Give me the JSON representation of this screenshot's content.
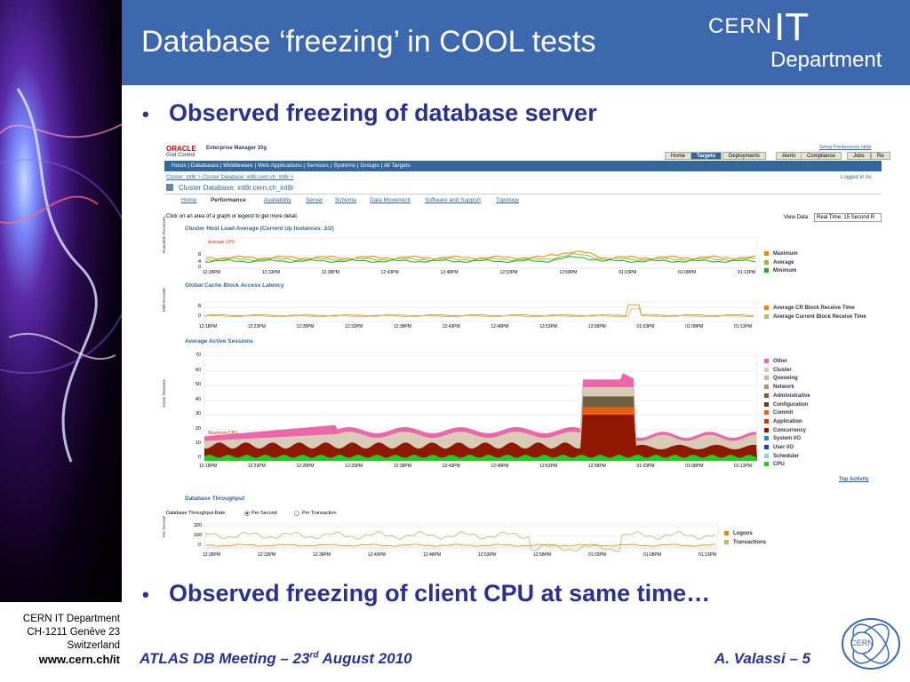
{
  "slide": {
    "title": "Database ‘freezing’ in COOL tests",
    "logo_cern": "CERN",
    "logo_it": "IT",
    "logo_dept": "Department",
    "bullet1": "Observed freezing of database server",
    "bullet2": "Observed freezing of client CPU at same time…",
    "footer_left": "ATLAS DB Meeting – 23",
    "footer_sup": "rd",
    "footer_after": " August 2010",
    "footer_right": "A. Valassi – 5",
    "addr1": "CERN IT Department",
    "addr2": "CH-1211 Genève 23",
    "addr3": "Switzerland",
    "url": "www.cern.ch/it",
    "emblem": "CERN"
  },
  "em": {
    "oracle": "ORACLE",
    "product": "Enterprise Manager 10g",
    "grid": "Grid Control",
    "links": "Setup  Preferences  Help",
    "tabs": [
      "Home",
      "Targets",
      "Deployments",
      "Alerts",
      "Compliance",
      "Jobs",
      "Re"
    ],
    "nav": "Hosts  |  Databases  |  Middleware  |  Web Applications  |  Services  |  Systems  |  Groups  |  All Targets",
    "crumb": "Cluster: int8r  >  Cluster Database: int8r.cern.ch_int8r  >",
    "logged": "Logged in As",
    "page_title": "Cluster Database: int8r.cern.ch_int8r",
    "subtabs": [
      "Home",
      "Performance",
      "Availability",
      "Server",
      "Schema",
      "Data Movement",
      "Software and Support",
      "Topology"
    ],
    "hint": "Click on an area of a graph or legend to get more detail.",
    "viewdata": "View Data",
    "viewsel": "Real Time: 15 Second R",
    "top_activity": "Top Activity"
  },
  "chart_data": [
    {
      "type": "line",
      "title": "Cluster Host Load Average (Current Up Instances: 2/2)",
      "ylabel": "Runnable Processes",
      "annotation": "Average CPU",
      "yticks": [
        "8",
        "4",
        "0"
      ],
      "x": [
        "12:28PM",
        "12:33PM",
        "12:38PM",
        "12:43PM",
        "12:48PM",
        "12:53PM",
        "12:58PM",
        "01:03PM",
        "01:08PM",
        "01:13PM"
      ],
      "series": [
        {
          "name": "Maximum",
          "color": "#e88a00"
        },
        {
          "name": "Average",
          "color": "#99bb33"
        },
        {
          "name": "Minimum",
          "color": "#22aa22"
        }
      ]
    },
    {
      "type": "line",
      "title": "Global Cache Block Access Latency",
      "ylabel": "Milli-Seconds",
      "yticks": [
        "8",
        "0"
      ],
      "x": [
        "12:18PM",
        "12:23PM",
        "12:28PM",
        "12:33PM",
        "12:38PM",
        "12:43PM",
        "12:48PM",
        "12:53PM",
        "12:58PM",
        "01:03PM",
        "01:08PM",
        "01:13PM"
      ],
      "series": [
        {
          "name": "Average CR Block Receive Time",
          "color": "#e88a00"
        },
        {
          "name": "Average Current Block Receive Time",
          "color": "#b8b866"
        }
      ]
    },
    {
      "type": "area",
      "title": "Average Active Sessions",
      "ylabel": "Active Sessions",
      "annotation": "Maximum CPU",
      "ylim": [
        0,
        70
      ],
      "yticks": [
        "70",
        "60",
        "50",
        "40",
        "30",
        "20",
        "10",
        "0"
      ],
      "x": [
        "12:18PM",
        "12:23PM",
        "12:28PM",
        "12:33PM",
        "12:38PM",
        "12:43PM",
        "12:48PM",
        "12:53PM",
        "12:58PM",
        "01:03PM",
        "01:08PM",
        "01:13PM"
      ],
      "series": [
        {
          "name": "Other",
          "color": "#ee66aa"
        },
        {
          "name": "Cluster",
          "color": "#d8ccb8"
        },
        {
          "name": "Queueing",
          "color": "#c8b8a0"
        },
        {
          "name": "Network",
          "color": "#a89880"
        },
        {
          "name": "Administrative",
          "color": "#706040"
        },
        {
          "name": "Configuration",
          "color": "#604020"
        },
        {
          "name": "Commit",
          "color": "#e86010"
        },
        {
          "name": "Application",
          "color": "#c04000"
        },
        {
          "name": "Concurrency",
          "color": "#901800"
        },
        {
          "name": "System I/O",
          "color": "#2288cc"
        },
        {
          "name": "User I/O",
          "color": "#1144cc"
        },
        {
          "name": "Scheduler",
          "color": "#88ddaa"
        },
        {
          "name": "CPU",
          "color": "#22cc22"
        }
      ]
    },
    {
      "type": "line",
      "title": "Database Throughput",
      "ylabel": "Per Second",
      "option_label": "Database Throughput Rate",
      "options": [
        "Per Second",
        "Per Transaction"
      ],
      "yticks": [
        "320",
        "160",
        "0"
      ],
      "x": [
        "12:28PM",
        "12:33PM",
        "12:38PM",
        "12:43PM",
        "12:48PM",
        "12:53PM",
        "12:58PM",
        "01:03PM",
        "01:08PM",
        "01:13PM"
      ],
      "series": [
        {
          "name": "Logons",
          "color": "#e88a00"
        },
        {
          "name": "Transactions",
          "color": "#b8b866"
        }
      ]
    }
  ]
}
